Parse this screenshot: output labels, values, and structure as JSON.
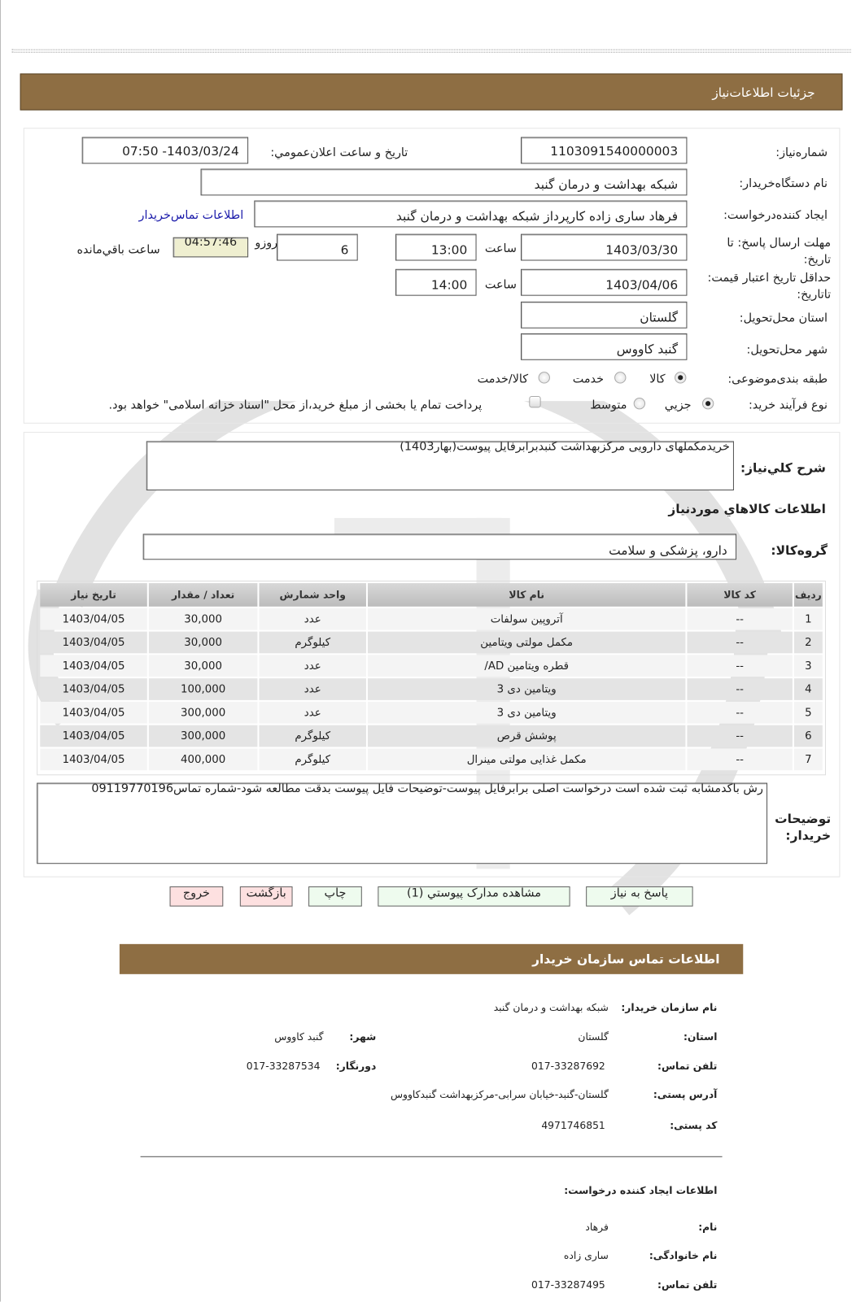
{
  "header": {
    "title": "جزئیات اطلاعات‌نیاز"
  },
  "form": {
    "need_number_label": "شماره‌نیاز:",
    "need_number": "1103091540000003",
    "announce_label": "تاریخ و ساعت اعلان‌عمومي:",
    "announce_value": "1403/03/24- 07:50",
    "buyer_org_label": "نام دستگاه‌خریدار:",
    "buyer_org": "شبکه بهداشت و درمان گنبد",
    "creator_label": "ایجاد کننده‌درخواست:",
    "creator": "فرهاد ساری زاده کارپرداز شبکه بهداشت و درمان گنبد",
    "contact_link": "اطلاعات تماس‌خریدار",
    "deadline_label": "مهلت ارسال پاسخ: تا تاریخ:",
    "deadline_date": "1403/03/30",
    "time_label": "ساعت",
    "deadline_time": "13:00",
    "days": "6",
    "days_label": "روزو",
    "remaining": "04:57:46",
    "remaining_label": "ساعت باقي‌مانده",
    "validity_label": "حداقل تاریخ اعتبار قیمت: تاتاریخ:",
    "validity_date": "1403/04/06",
    "validity_time": "14:00",
    "province_label": "استان محل‌تحویل:",
    "province": "گلستان",
    "city_label": "شهر محل‌تحویل:",
    "city": "گنبد کاووس",
    "category_label": "طبقه بندی‌موضوعی:",
    "category_options": [
      "کالا",
      "خدمت",
      "کالا/خدمت"
    ],
    "category_selected": "کالا",
    "process_label": "نوع فرآیند خرید:",
    "process_options": [
      "جزیي",
      "متوسط"
    ],
    "process_selected": "جزیي",
    "treasury_text": "پرداخت تمام یا بخشی از مبلغ خرید،از محل \"اسناد خزانه اسلامی\" خواهد بود.",
    "treasury_checked": false
  },
  "details": {
    "summary_label": "شرح کلي‌نیاز:",
    "summary": "خریدمکملهای دارویی مرکزبهداشت گنبدبرابرفایل پیوست(بهار1403)",
    "goods_title": "اطلاعات کالاهاي موردنیاز",
    "group_label": "گروه‌کالا:",
    "group": "دارو، پزشکی و سلامت",
    "columns": [
      "ردیف",
      "کد کالا",
      "نام کالا",
      "واحد شمارش",
      "تعداد / مقدار",
      "تاریخ نیاز"
    ],
    "rows": [
      [
        "1",
        "--",
        "آتروپین سولفات",
        "عدد",
        "30,000",
        "1403/04/05"
      ],
      [
        "2",
        "--",
        "مکمل مولتی ویتامین",
        "کیلوگرم",
        "30,000",
        "1403/04/05"
      ],
      [
        "3",
        "--",
        "قطره ویتامین AD/",
        "عدد",
        "30,000",
        "1403/04/05"
      ],
      [
        "4",
        "--",
        "ویتامین دی 3",
        "عدد",
        "100,000",
        "1403/04/05"
      ],
      [
        "5",
        "--",
        "ویتامین دی 3",
        "عدد",
        "300,000",
        "1403/04/05"
      ],
      [
        "6",
        "--",
        "پوشش قرص",
        "کیلوگرم",
        "300,000",
        "1403/04/05"
      ],
      [
        "7",
        "--",
        "مکمل غذایی مولتی مینرال",
        "کیلوگرم",
        "400,000",
        "1403/04/05"
      ]
    ],
    "buyer_notes_label": "توضیحات خریدار:",
    "buyer_notes": "رش باکدمشابه ثبت شده است درخواست اصلی برابرفایل پیوست-توضیحات فایل پیوست بدقت مطالعه شود-شماره تماس09119770196"
  },
  "buttons": {
    "reply": "پاسخ به نیاز",
    "attachments": "مشاهده مدارک پیوستي (1)",
    "print": "چاپ",
    "back": "بازگشت",
    "exit": "خروج"
  },
  "contact": {
    "title": "اطلاعات تماس سازمان خریدار",
    "org_label": "نام سازمان خریدار:",
    "org": "شبکه بهداشت و درمان گنبد",
    "province_label": "استان:",
    "province": "گلستان",
    "city_label": "شهر:",
    "city": "گنبد کاووس",
    "phone_label": "تلفن تماس:",
    "phone": "017-33287692",
    "fax_label": "دورنگار:",
    "fax": "017-33287534",
    "address_label": "آدرس پستی:",
    "address": "گلستان-گنبد-خیابان سرابی-مرکزبهداشت گنبدکاووس",
    "postal_label": "کد پستی:",
    "postal": "4971746851",
    "creator_title": "اطلاعات ایجاد کننده درخواست:",
    "first_name_label": "نام:",
    "first_name": "فرهاد",
    "last_name_label": "نام خانوادگی:",
    "last_name": "ساری زاده",
    "creator_phone_label": "تلفن تماس:",
    "creator_phone": "017-33287495"
  },
  "colors": {
    "header_bar": "#8e6e43",
    "link": "#1a1aaa",
    "green_button": "#eefbee",
    "red_button": "#fde0e0",
    "countdown_bg": "#efefd0"
  }
}
